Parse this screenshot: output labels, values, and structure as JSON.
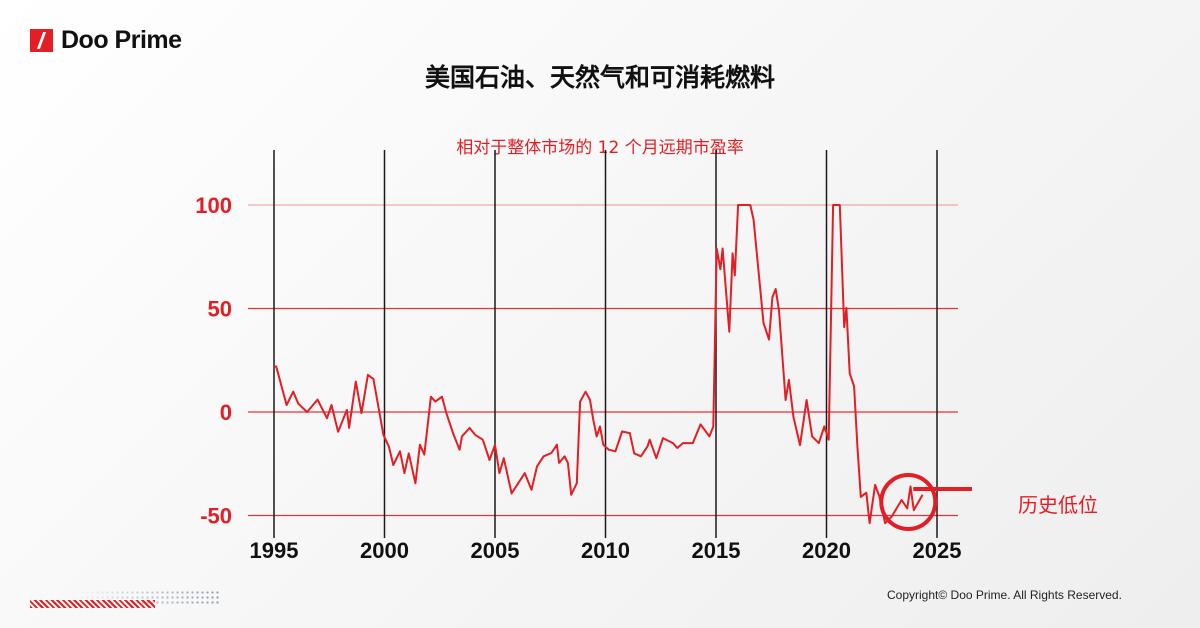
{
  "brand": {
    "name": "Doo Prime",
    "color": "#e31e24"
  },
  "footer": {
    "copyright": "Copyright© Doo Prime. All Rights Reserved."
  },
  "chart_data": {
    "type": "line",
    "title": "美国石油、天然气和可消耗燃料",
    "subtitle": "相对于整体市场的 12 个月远期市盈率",
    "xlim": [
      1995,
      2025
    ],
    "ylim": [
      -50,
      100
    ],
    "x_ticks": [
      1995,
      2000,
      2005,
      2010,
      2015,
      2020,
      2025
    ],
    "y_ticks": [
      -50,
      0,
      50,
      100
    ],
    "grid": true,
    "line_color": "#e31e24",
    "annotation": {
      "text": "历史低位",
      "x": 2023.7,
      "y": -42
    },
    "series": [
      {
        "x": [
          1995.0,
          1995.1,
          1995.57,
          1995.87,
          1996.1,
          1996.5,
          1996.97,
          1997.4,
          1997.6,
          1997.9,
          1998.3,
          1998.4,
          1998.7,
          1998.96,
          1999.25,
          1999.5,
          1999.95,
          2000.2,
          2000.4,
          2000.7,
          2000.9,
          2001.1,
          2001.4,
          2001.6,
          2001.8,
          2002.1,
          2002.3,
          2002.6,
          2002.8,
          2003.1,
          2003.4,
          2003.5,
          2003.85,
          2004.1,
          2004.45,
          2004.75,
          2005.0,
          2005.2,
          2005.4,
          2005.75,
          2006.05,
          2006.35,
          2006.65,
          2006.9,
          2007.2,
          2007.55,
          2007.8,
          2007.9,
          2008.15,
          2008.3,
          2008.45,
          2008.7,
          2008.85,
          2009.1,
          2009.3,
          2009.45,
          2009.6,
          2009.75,
          2009.9,
          2010.15,
          2010.45,
          2010.75,
          2011.1,
          2011.3,
          2011.6,
          2011.9,
          2012.0,
          2012.3,
          2012.6,
          2013.05,
          2013.25,
          2013.5,
          2013.95,
          2014.3,
          2014.7,
          2014.88,
          2015.03,
          2015.2,
          2015.3,
          2015.6,
          2015.75,
          2015.85,
          2016.0,
          2016.55,
          2016.7,
          2017.15,
          2017.4,
          2017.55,
          2017.7,
          2017.85,
          2018.15,
          2018.3,
          2018.5,
          2018.8,
          2019.1,
          2019.35,
          2019.65,
          2019.9,
          2020.1,
          2020.3,
          2020.6,
          2020.8,
          2020.9,
          2021.05,
          2021.25,
          2021.4,
          2021.55,
          2021.8,
          2021.95,
          2022.2,
          2022.4,
          2022.65,
          2022.95,
          2023.4,
          2023.65,
          2023.8,
          2023.95,
          2024.35
        ],
        "y": [
          22,
          22,
          3.4,
          9.8,
          4,
          0,
          6,
          -3,
          3.4,
          -9.5,
          1,
          -7.7,
          14.7,
          -0.6,
          17.9,
          16,
          -11,
          -16.7,
          -25.6,
          -19,
          -29.5,
          -20,
          -34.4,
          -15.8,
          -20.6,
          7.4,
          5,
          7.4,
          -0.6,
          -10.2,
          -18.2,
          -11.8,
          -7.7,
          -11,
          -13.4,
          -23.2,
          -15.9,
          -29.5,
          -22.3,
          -39.3,
          -34.4,
          -29.5,
          -37.6,
          -26.3,
          -21.4,
          -19.8,
          -15.8,
          -24.6,
          -21.4,
          -24.6,
          -40,
          -34.4,
          5,
          9.8,
          5.8,
          -3.8,
          -11.8,
          -7,
          -15.8,
          -18.2,
          -19,
          -9.4,
          -10.2,
          -20,
          -21.4,
          -16.6,
          -13.4,
          -22.3,
          -12.6,
          -15,
          -17.4,
          -15,
          -15,
          -6,
          -11.8,
          -7,
          79,
          69,
          79,
          38.8,
          76.6,
          66,
          100,
          100,
          92.8,
          43,
          35,
          55.4,
          59.4,
          49,
          5.8,
          15.5,
          -2.2,
          -16,
          5.8,
          -11.8,
          -15,
          -7,
          -13.4,
          100,
          100,
          41,
          50.3,
          18.7,
          12.3,
          -16.6,
          -41,
          -39,
          -53.7,
          -35.2,
          -41,
          -53.7,
          -50.5,
          -42.5,
          -46.5,
          -36,
          -47.4,
          -40
        ]
      }
    ]
  }
}
